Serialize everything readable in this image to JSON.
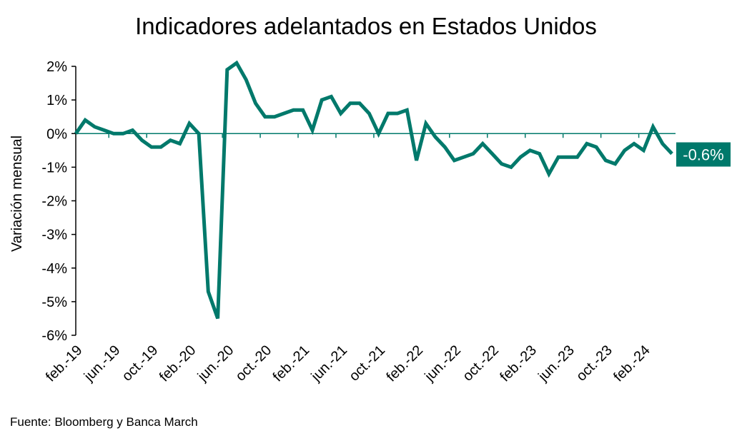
{
  "chart_data": {
    "type": "line",
    "title": "Indicadores adelantados en Estados Unidos",
    "ylabel": "Variación mensual",
    "xlabel": "",
    "source": "Fuente: Bloomberg y Banca March",
    "ylim": [
      -6,
      2
    ],
    "yticks": [
      2,
      1,
      0,
      -1,
      -2,
      -3,
      -4,
      -5,
      -6
    ],
    "ytick_labels": [
      "2%",
      "1%",
      "0%",
      "-1%",
      "-2%",
      "-3%",
      "-4%",
      "-5%",
      "-6%"
    ],
    "xtick_labels": [
      "feb.-19",
      "jun.-19",
      "oct.-19",
      "feb.-20",
      "jun.-20",
      "oct.-20",
      "feb.-21",
      "jun.-21",
      "oct.-21",
      "feb.-22",
      "jun.-22",
      "oct.-22",
      "feb.-23",
      "jun.-23",
      "oct.-23",
      "feb.-24"
    ],
    "xtick_every": 4,
    "series": [
      {
        "name": "Variación mensual",
        "color": "#00796B",
        "values": [
          0.0,
          0.4,
          0.2,
          0.1,
          0.0,
          0.0,
          0.1,
          -0.2,
          -0.4,
          -0.4,
          -0.2,
          -0.3,
          0.3,
          0.0,
          -4.7,
          -5.5,
          1.9,
          2.1,
          1.6,
          0.9,
          0.5,
          0.5,
          0.6,
          0.7,
          0.7,
          0.1,
          1.0,
          1.1,
          0.6,
          0.9,
          0.9,
          0.6,
          0.0,
          0.6,
          0.6,
          0.7,
          -0.8,
          0.3,
          -0.1,
          -0.4,
          -0.8,
          -0.7,
          -0.6,
          -0.3,
          -0.6,
          -0.9,
          -1.0,
          -0.7,
          -0.5,
          -0.6,
          -1.2,
          -0.7,
          -0.7,
          -0.7,
          -0.3,
          -0.4,
          -0.8,
          -0.9,
          -0.5,
          -0.3,
          -0.5,
          0.2,
          -0.3,
          -0.6
        ]
      }
    ],
    "last_value_label": "-0.6%",
    "grid": false
  }
}
